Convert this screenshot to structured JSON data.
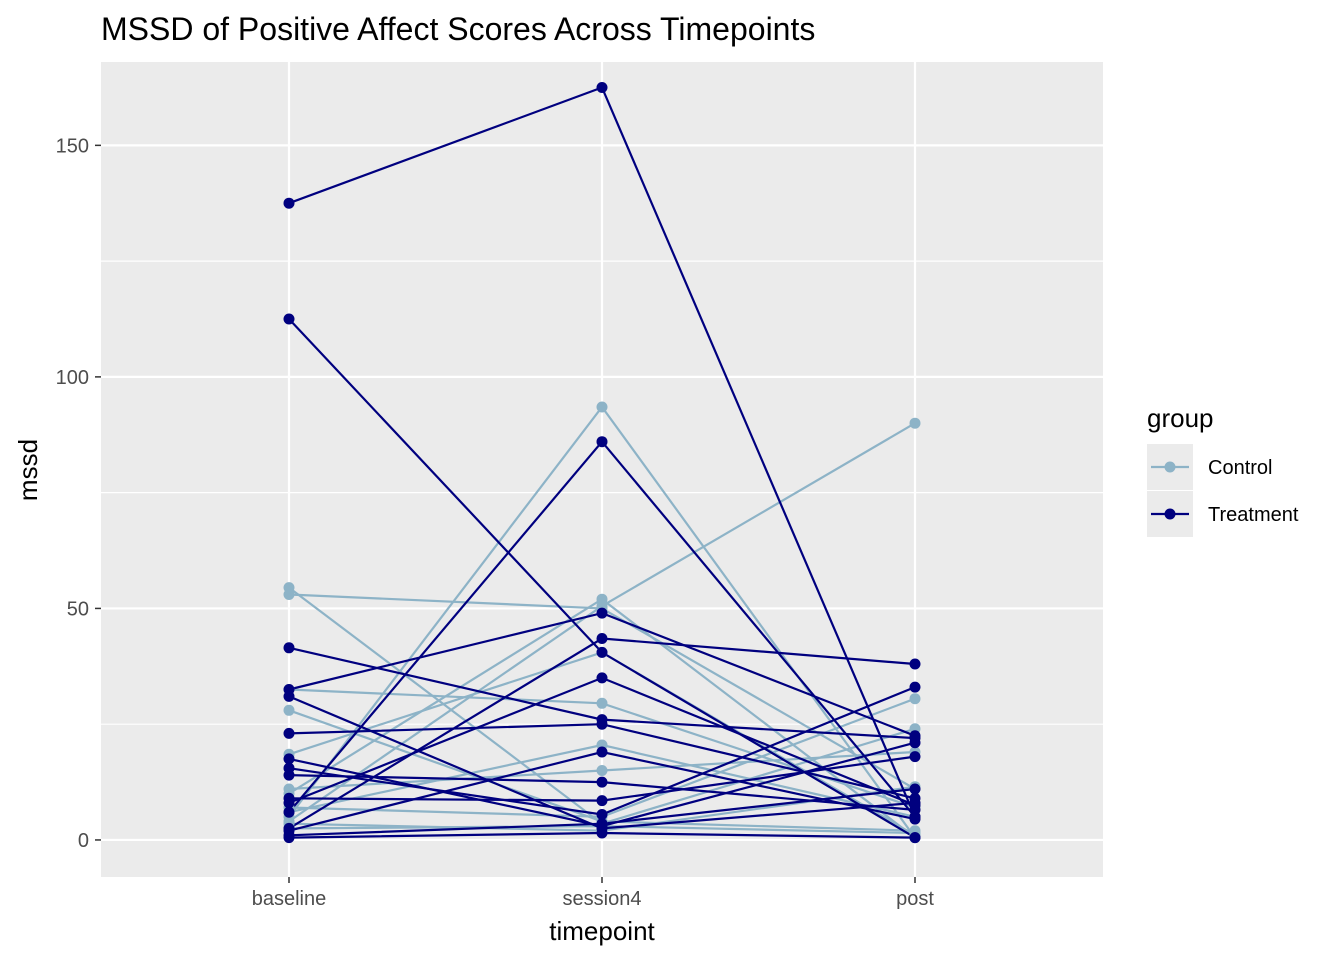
{
  "chart_data": {
    "type": "line",
    "title": "MSSD of Positive Affect Scores Across Timepoints",
    "xlabel": "timepoint",
    "ylabel": "mssd",
    "categories": [
      "baseline",
      "session4",
      "post"
    ],
    "ylim": [
      -8,
      168
    ],
    "yticks": [
      0,
      50,
      100,
      150
    ],
    "grid": true,
    "legend": {
      "title": "group",
      "placement": "right",
      "entries": [
        {
          "name": "Control",
          "color": "#8db3c7"
        },
        {
          "name": "Treatment",
          "color": "#00007f"
        }
      ]
    },
    "series": [
      {
        "group": "Control",
        "values": [
          54.5,
          3.5,
          24.0
        ]
      },
      {
        "group": "Control",
        "values": [
          53.0,
          50.0,
          11.0
        ]
      },
      {
        "group": "Control",
        "values": [
          32.5,
          29.5,
          7.0
        ]
      },
      {
        "group": "Control",
        "values": [
          28.0,
          4.0,
          2.0
        ]
      },
      {
        "group": "Control",
        "values": [
          18.5,
          40.5,
          1.0
        ]
      },
      {
        "group": "Control",
        "values": [
          11.0,
          15.0,
          19.0
        ]
      },
      {
        "group": "Control",
        "values": [
          10.0,
          52.0,
          0.5
        ]
      },
      {
        "group": "Control",
        "values": [
          7.0,
          5.0,
          30.5
        ]
      },
      {
        "group": "Control",
        "values": [
          6.0,
          20.5,
          5.0
        ]
      },
      {
        "group": "Control",
        "values": [
          5.0,
          93.5,
          0.5
        ]
      },
      {
        "group": "Control",
        "values": [
          4.0,
          50.5,
          90.0
        ]
      },
      {
        "group": "Control",
        "values": [
          3.5,
          2.0,
          11.5
        ]
      },
      {
        "group": "Control",
        "values": [
          2.5,
          3.0,
          1.5
        ]
      },
      {
        "group": "Treatment",
        "values": [
          137.5,
          162.5,
          5.0
        ]
      },
      {
        "group": "Treatment",
        "values": [
          112.5,
          40.5,
          0.5
        ]
      },
      {
        "group": "Treatment",
        "values": [
          41.5,
          26.0,
          22.0
        ]
      },
      {
        "group": "Treatment",
        "values": [
          32.5,
          49.0,
          22.5
        ]
      },
      {
        "group": "Treatment",
        "values": [
          31.0,
          2.5,
          8.0
        ]
      },
      {
        "group": "Treatment",
        "values": [
          23.0,
          25.0,
          9.0
        ]
      },
      {
        "group": "Treatment",
        "values": [
          17.5,
          3.0,
          21.0
        ]
      },
      {
        "group": "Treatment",
        "values": [
          15.5,
          5.5,
          33.0
        ]
      },
      {
        "group": "Treatment",
        "values": [
          14.0,
          12.5,
          6.5
        ]
      },
      {
        "group": "Treatment",
        "values": [
          9.0,
          8.5,
          18.0
        ]
      },
      {
        "group": "Treatment",
        "values": [
          8.0,
          35.0,
          7.5
        ]
      },
      {
        "group": "Treatment",
        "values": [
          6.0,
          86.0,
          5.0
        ]
      },
      {
        "group": "Treatment",
        "values": [
          2.5,
          43.5,
          38.0
        ]
      },
      {
        "group": "Treatment",
        "values": [
          2.0,
          19.0,
          4.5
        ]
      },
      {
        "group": "Treatment",
        "values": [
          1.0,
          3.5,
          11.0
        ]
      },
      {
        "group": "Treatment",
        "values": [
          0.5,
          1.5,
          0.5
        ]
      }
    ]
  }
}
